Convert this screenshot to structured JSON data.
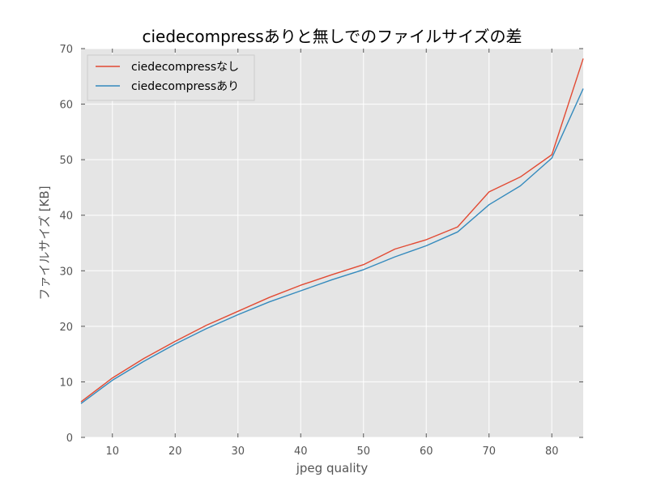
{
  "chart_data": {
    "type": "line",
    "title": "ciedecompressありと無しでのファイルサイズの差",
    "xlabel": "jpeg quality",
    "ylabel": "ファイルサイズ [KB]",
    "xlim": [
      5,
      85
    ],
    "ylim": [
      0,
      70
    ],
    "xticks": [
      10,
      20,
      30,
      40,
      50,
      60,
      70,
      80
    ],
    "yticks": [
      0,
      10,
      20,
      30,
      40,
      50,
      60,
      70
    ],
    "grid": true,
    "legend_position": "top-left",
    "x": [
      5,
      10,
      15,
      20,
      25,
      30,
      35,
      40,
      45,
      50,
      55,
      60,
      65,
      70,
      75,
      80,
      85
    ],
    "series": [
      {
        "name": "ciedecompressなし",
        "color": "#e24a33",
        "values": [
          6.4,
          10.7,
          14.2,
          17.3,
          20.2,
          22.7,
          25.2,
          27.4,
          29.3,
          31.1,
          33.9,
          35.6,
          37.9,
          44.2,
          46.9,
          50.9,
          68.2
        ]
      },
      {
        "name": "ciedecompressあり",
        "color": "#348abd",
        "values": [
          6.1,
          10.3,
          13.7,
          16.8,
          19.6,
          22.1,
          24.4,
          26.4,
          28.4,
          30.2,
          32.5,
          34.5,
          37.0,
          41.9,
          45.3,
          50.3,
          62.8
        ]
      }
    ]
  },
  "style": {
    "plot_background": "#e5e5e5",
    "grid_color": "#ffffff",
    "axis_text_color": "#555555"
  }
}
